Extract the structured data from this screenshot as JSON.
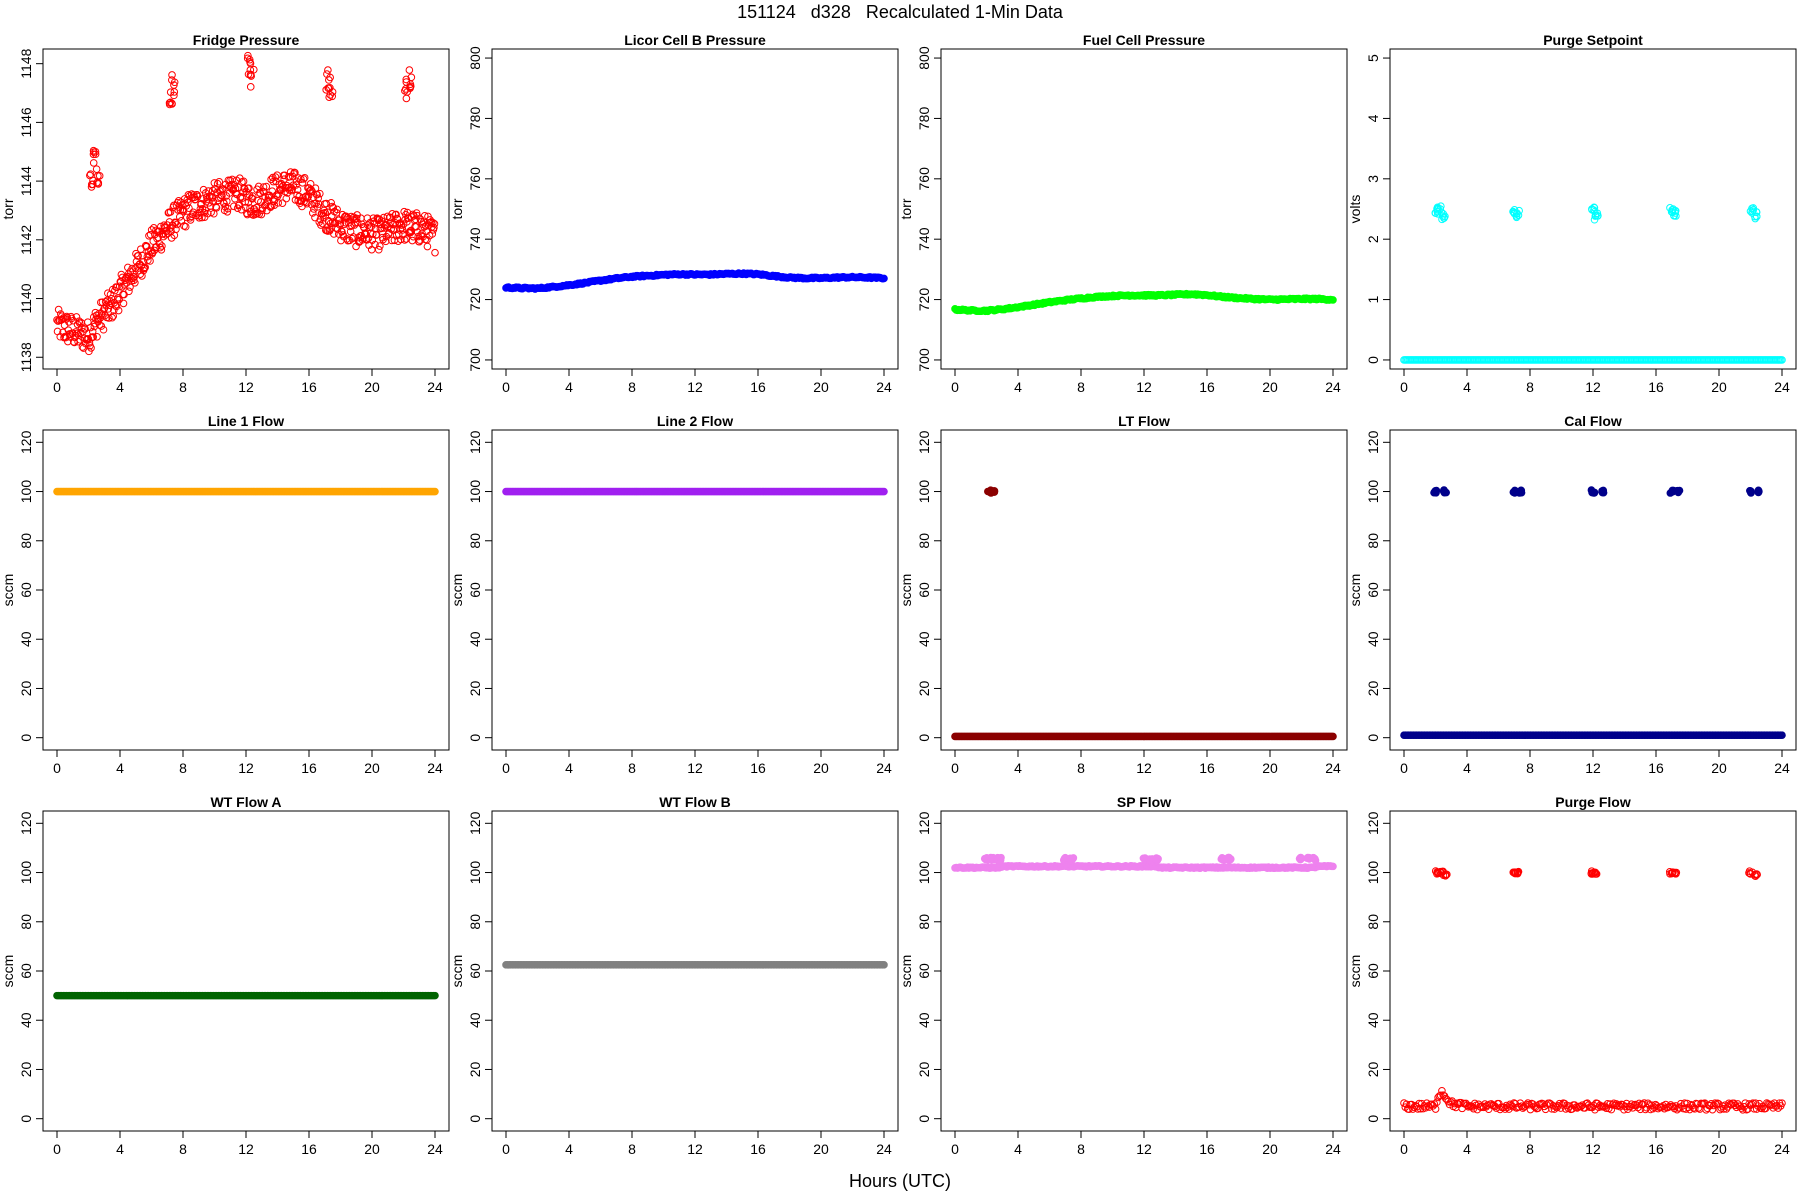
{
  "page": {
    "title": "151124   d328   Recalculated 1-Min Data",
    "xlabel": "Hours (UTC)"
  },
  "chart_data": [
    {
      "type": "scatter",
      "title": "Fridge Pressure",
      "ylabel": "torr",
      "xlim": [
        0,
        24
      ],
      "ylim": [
        1137.6,
        1148.5
      ],
      "x_ticks": [
        0,
        4,
        8,
        12,
        16,
        20,
        24
      ],
      "y_ticks": [
        1138,
        1140,
        1142,
        1144,
        1146,
        1148
      ],
      "color": "#ff0000",
      "marker": "open-circle",
      "series": [
        {
          "x": [
            0,
            0.5,
            1,
            1.5,
            2,
            2.5,
            3,
            3.5,
            4,
            4.5,
            5,
            5.5,
            6,
            6.5,
            7,
            7.5,
            8,
            8.5,
            9,
            9.5,
            10,
            10.5,
            11,
            11.5,
            12,
            12.5,
            13,
            13.5,
            14,
            14.5,
            15,
            15.5,
            16,
            16.5,
            17,
            17.5,
            18,
            18.5,
            19,
            19.5,
            20,
            20.5,
            21,
            21.5,
            22,
            22.5,
            23,
            23.5,
            24
          ],
          "y": [
            1139.1,
            1139.0,
            1138.9,
            1138.8,
            1138.7,
            1139.2,
            1139.5,
            1139.8,
            1140.2,
            1140.6,
            1141.0,
            1141.4,
            1141.8,
            1142.1,
            1142.4,
            1142.7,
            1142.9,
            1143.1,
            1143.2,
            1143.3,
            1143.4,
            1143.5,
            1143.5,
            1143.6,
            1143.4,
            1143.3,
            1143.4,
            1143.6,
            1143.7,
            1143.8,
            1143.8,
            1143.7,
            1143.5,
            1143.2,
            1142.9,
            1142.7,
            1142.5,
            1142.4,
            1142.3,
            1142.3,
            1142.2,
            1142.2,
            1142.3,
            1142.4,
            1142.5,
            1142.4,
            1142.4,
            1142.3,
            1142.1
          ]
        },
        {
          "x": [
            2.2,
            2.4,
            2.6,
            7.2,
            7.4,
            12.2,
            12.4,
            17.2,
            17.4,
            22.2,
            22.4
          ],
          "y": [
            1144.2,
            1145.0,
            1144.1,
            1147.0,
            1147.3,
            1148.0,
            1147.6,
            1147.5,
            1147.2,
            1147.1,
            1147.4
          ]
        }
      ]
    },
    {
      "type": "scatter",
      "title": "Licor Cell B Pressure",
      "ylabel": "torr",
      "xlim": [
        0,
        24
      ],
      "ylim": [
        697,
        803
      ],
      "x_ticks": [
        0,
        4,
        8,
        12,
        16,
        20,
        24
      ],
      "y_ticks": [
        700,
        720,
        740,
        760,
        780,
        800
      ],
      "color": "#0000ff",
      "marker": "filled-circle",
      "series": [
        {
          "x": [
            0,
            1,
            2,
            3,
            4,
            5,
            6,
            7,
            8,
            9,
            10,
            11,
            12,
            13,
            14,
            15,
            16,
            17,
            18,
            19,
            20,
            21,
            22,
            23,
            24
          ],
          "y": [
            724.0,
            723.8,
            723.7,
            724.2,
            724.8,
            725.5,
            726.3,
            727.0,
            727.6,
            727.9,
            728.2,
            728.4,
            728.3,
            728.3,
            728.5,
            728.6,
            728.4,
            727.8,
            727.3,
            727.1,
            727.1,
            727.3,
            727.4,
            727.3,
            727.1
          ]
        }
      ]
    },
    {
      "type": "scatter",
      "title": "Fuel Cell Pressure",
      "ylabel": "torr",
      "xlim": [
        0,
        24
      ],
      "ylim": [
        697,
        803
      ],
      "x_ticks": [
        0,
        4,
        8,
        12,
        16,
        20,
        24
      ],
      "y_ticks": [
        700,
        720,
        740,
        760,
        780,
        800
      ],
      "color": "#00ff00",
      "marker": "filled-circle",
      "series": [
        {
          "x": [
            0,
            1,
            2,
            3,
            4,
            5,
            6,
            7,
            8,
            9,
            10,
            11,
            12,
            13,
            14,
            15,
            16,
            17,
            18,
            19,
            20,
            21,
            22,
            23,
            24
          ],
          "y": [
            716.7,
            716.4,
            716.3,
            716.8,
            717.5,
            718.3,
            719.1,
            719.8,
            720.4,
            720.9,
            721.2,
            721.4,
            721.4,
            721.4,
            721.6,
            721.8,
            721.5,
            720.9,
            720.5,
            720.2,
            720.0,
            720.1,
            720.2,
            720.2,
            720.0
          ]
        }
      ]
    },
    {
      "type": "scatter",
      "title": "Purge Setpoint",
      "ylabel": "volts",
      "xlim": [
        0,
        24
      ],
      "ylim": [
        -0.15,
        5.15
      ],
      "x_ticks": [
        0,
        4,
        8,
        12,
        16,
        20,
        24
      ],
      "y_ticks": [
        0,
        1,
        2,
        3,
        4,
        5
      ],
      "color": "#00ffff",
      "marker": "open-circle",
      "series": [
        {
          "x": [
            0,
            2,
            4,
            6,
            8,
            10,
            12,
            14,
            16,
            18,
            20,
            22,
            24
          ],
          "y": [
            0,
            0,
            0,
            0,
            0,
            0,
            0,
            0,
            0,
            0,
            0,
            0,
            0
          ]
        },
        {
          "x": [
            2.1,
            2.25,
            2.5,
            7.0,
            7.2,
            12.0,
            12.2,
            17.0,
            17.2,
            22.1,
            22.3
          ],
          "y": [
            2.45,
            2.5,
            2.38,
            2.48,
            2.42,
            2.47,
            2.38,
            2.48,
            2.43,
            2.47,
            2.4
          ]
        }
      ]
    },
    {
      "type": "scatter",
      "title": "Line 1 Flow",
      "ylabel": "sccm",
      "xlim": [
        0,
        24
      ],
      "ylim": [
        -5,
        125
      ],
      "x_ticks": [
        0,
        4,
        8,
        12,
        16,
        20,
        24
      ],
      "y_ticks": [
        0,
        20,
        40,
        60,
        80,
        100,
        120
      ],
      "color": "#ffa500",
      "marker": "filled-circle",
      "series": [
        {
          "x": [
            0,
            24
          ],
          "y": [
            100,
            100
          ]
        }
      ]
    },
    {
      "type": "scatter",
      "title": "Line 2 Flow",
      "ylabel": "sccm",
      "xlim": [
        0,
        24
      ],
      "ylim": [
        -5,
        125
      ],
      "x_ticks": [
        0,
        4,
        8,
        12,
        16,
        20,
        24
      ],
      "y_ticks": [
        0,
        20,
        40,
        60,
        80,
        100,
        120
      ],
      "color": "#a020f0",
      "marker": "filled-circle",
      "series": [
        {
          "x": [
            0,
            24
          ],
          "y": [
            100,
            100
          ]
        }
      ]
    },
    {
      "type": "scatter",
      "title": "LT Flow",
      "ylabel": "sccm",
      "xlim": [
        0,
        24
      ],
      "ylim": [
        -5,
        125
      ],
      "x_ticks": [
        0,
        4,
        8,
        12,
        16,
        20,
        24
      ],
      "y_ticks": [
        0,
        20,
        40,
        60,
        80,
        100,
        120
      ],
      "color": "#8b0000",
      "marker": "filled-circle",
      "series": [
        {
          "x": [
            0,
            24
          ],
          "y": [
            0.5,
            0.5
          ]
        },
        {
          "x": [
            2.2,
            2.5
          ],
          "y": [
            100,
            100
          ]
        }
      ]
    },
    {
      "type": "scatter",
      "title": "Cal Flow",
      "ylabel": "sccm",
      "xlim": [
        0,
        24
      ],
      "ylim": [
        -5,
        125
      ],
      "x_ticks": [
        0,
        4,
        8,
        12,
        16,
        20,
        24
      ],
      "y_ticks": [
        0,
        20,
        40,
        60,
        80,
        100,
        120
      ],
      "color": "#00008b",
      "marker": "filled-circle",
      "series": [
        {
          "x": [
            0,
            24
          ],
          "y": [
            1,
            1
          ]
        },
        {
          "x": [
            2.0,
            2.6,
            7.0,
            7.4,
            12.0,
            12.6,
            17.0,
            17.4,
            22.0,
            22.6
          ],
          "y": [
            100,
            100,
            100,
            100,
            100,
            100,
            100,
            100,
            100,
            100
          ]
        }
      ]
    },
    {
      "type": "scatter",
      "title": "WT Flow A",
      "ylabel": "sccm",
      "xlim": [
        0,
        24
      ],
      "ylim": [
        -5,
        125
      ],
      "x_ticks": [
        0,
        4,
        8,
        12,
        16,
        20,
        24
      ],
      "y_ticks": [
        0,
        20,
        40,
        60,
        80,
        100,
        120
      ],
      "color": "#006400",
      "marker": "filled-circle",
      "series": [
        {
          "x": [
            0,
            24
          ],
          "y": [
            50,
            50
          ]
        }
      ]
    },
    {
      "type": "scatter",
      "title": "WT Flow B",
      "ylabel": "sccm",
      "xlim": [
        0,
        24
      ],
      "ylim": [
        -5,
        125
      ],
      "x_ticks": [
        0,
        4,
        8,
        12,
        16,
        20,
        24
      ],
      "y_ticks": [
        0,
        20,
        40,
        60,
        80,
        100,
        120
      ],
      "color": "#808080",
      "marker": "filled-circle",
      "series": [
        {
          "x": [
            0,
            24
          ],
          "y": [
            62.5,
            62.5
          ]
        }
      ]
    },
    {
      "type": "scatter",
      "title": "SP Flow",
      "ylabel": "sccm",
      "xlim": [
        0,
        24
      ],
      "ylim": [
        -5,
        125
      ],
      "x_ticks": [
        0,
        4,
        8,
        12,
        16,
        20,
        24
      ],
      "y_ticks": [
        0,
        20,
        40,
        60,
        80,
        100,
        120
      ],
      "color": "#ee82ee",
      "marker": "filled-circle",
      "series": [
        {
          "x": [
            0,
            1,
            2,
            2.8,
            3,
            6,
            7,
            7.5,
            8,
            10,
            12,
            12.8,
            13,
            16,
            17,
            17.5,
            18,
            20,
            22,
            22.8,
            23,
            24
          ],
          "y": [
            102,
            102,
            102,
            102,
            102.5,
            102.5,
            102.5,
            102.5,
            102.5,
            102.5,
            102.5,
            102.5,
            102,
            102,
            102,
            102,
            102,
            102,
            102,
            102,
            102.5,
            102.5
          ]
        },
        {
          "x": [
            2.0,
            2.4,
            2.8,
            7.0,
            7.4,
            12.0,
            12.4,
            12.8,
            17.0,
            17.4,
            22.0,
            22.4,
            22.8
          ],
          "y": [
            105.5,
            105.5,
            105.5,
            105.5,
            105.5,
            105.5,
            105.5,
            105.5,
            105.5,
            105.5,
            105.5,
            105.5,
            105.5
          ]
        }
      ]
    },
    {
      "type": "scatter",
      "title": "Purge Flow",
      "ylabel": "sccm",
      "xlim": [
        0,
        24
      ],
      "ylim": [
        -5,
        125
      ],
      "x_ticks": [
        0,
        4,
        8,
        12,
        16,
        20,
        24
      ],
      "y_ticks": [
        0,
        20,
        40,
        60,
        80,
        100,
        120
      ],
      "color": "#ff0000",
      "marker": "open-circle",
      "series": [
        {
          "x": [
            0,
            1,
            2,
            2.2,
            2.4,
            3,
            4,
            5,
            6,
            7,
            8,
            9,
            10,
            11,
            12,
            13,
            14,
            15,
            16,
            17,
            18,
            19,
            20,
            21,
            22,
            23,
            24
          ],
          "y": [
            5,
            5,
            5,
            10,
            11,
            6,
            5,
            5,
            5,
            5,
            5,
            5,
            5,
            5,
            5,
            5,
            5,
            5,
            5,
            5,
            5,
            5,
            5,
            5,
            5,
            5,
            5
          ]
        },
        {
          "x": [
            2.1,
            2.4,
            2.6,
            7.0,
            7.2,
            12.0,
            12.2,
            17.0,
            17.2,
            22.0,
            22.3
          ],
          "y": [
            100,
            100,
            99,
            100,
            100,
            100,
            99.5,
            100,
            100,
            100,
            99
          ]
        }
      ]
    }
  ]
}
